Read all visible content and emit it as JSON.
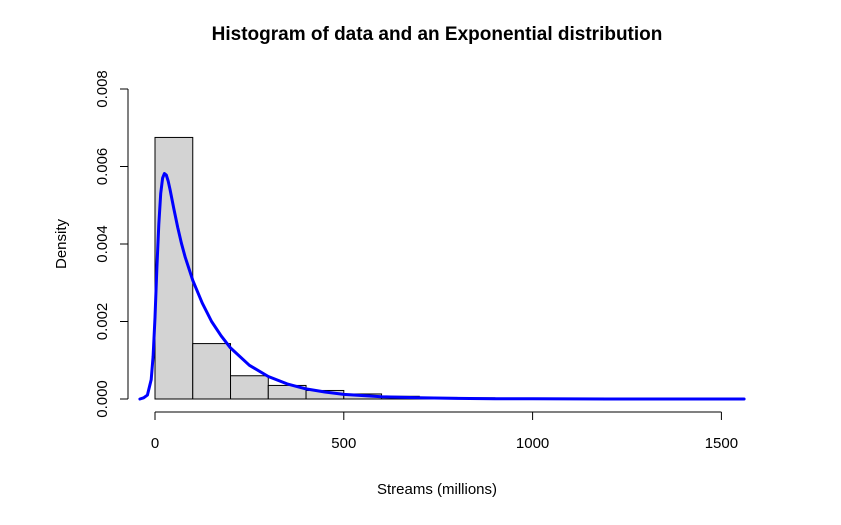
{
  "chart_data": {
    "type": "bar",
    "title": "Histogram of data and an Exponential distribution",
    "xlabel": "Streams (millions)",
    "ylabel": "Density",
    "xlim": [
      0,
      1550
    ],
    "ylim": [
      0,
      0.008
    ],
    "x_ticks": [
      {
        "value": 0,
        "label": "0"
      },
      {
        "value": 500,
        "label": "500"
      },
      {
        "value": 1000,
        "label": "1000"
      },
      {
        "value": 1500,
        "label": "1500"
      }
    ],
    "y_ticks": [
      {
        "value": 0,
        "label": "0.000"
      },
      {
        "value": 0.002,
        "label": "0.002"
      },
      {
        "value": 0.004,
        "label": "0.004"
      },
      {
        "value": 0.006,
        "label": "0.006"
      },
      {
        "value": 0.008,
        "label": "0.008"
      }
    ],
    "bins": [
      {
        "from": 0,
        "to": 100,
        "density": 0.00675
      },
      {
        "from": 100,
        "to": 200,
        "density": 0.00143
      },
      {
        "from": 200,
        "to": 300,
        "density": 0.0006
      },
      {
        "from": 300,
        "to": 400,
        "density": 0.00035
      },
      {
        "from": 400,
        "to": 500,
        "density": 0.00022
      },
      {
        "from": 500,
        "to": 600,
        "density": 0.00013
      },
      {
        "from": 600,
        "to": 700,
        "density": 7e-05
      },
      {
        "from": 700,
        "to": 800,
        "density": 4e-05
      },
      {
        "from": 800,
        "to": 900,
        "density": 3e-05
      },
      {
        "from": 900,
        "to": 1000,
        "density": 2e-05
      },
      {
        "from": 1000,
        "to": 1100,
        "density": 1e-05
      }
    ],
    "curve": {
      "x": [
        -40,
        -30,
        -20,
        -10,
        -5,
        0,
        5,
        10,
        15,
        20,
        25,
        30,
        35,
        40,
        50,
        60,
        70,
        80,
        100,
        125,
        150,
        175,
        200,
        250,
        300,
        350,
        400,
        450,
        500,
        600,
        700,
        800,
        900,
        1000,
        1200,
        1400,
        1560
      ],
      "y": [
        0.0,
        3e-05,
        0.0001,
        0.0005,
        0.0011,
        0.0021,
        0.0034,
        0.0045,
        0.0053,
        0.0057,
        0.00582,
        0.00578,
        0.00562,
        0.0054,
        0.0049,
        0.00443,
        0.00402,
        0.00366,
        0.00306,
        0.00248,
        0.002,
        0.00163,
        0.00132,
        0.00087,
        0.00058,
        0.00039,
        0.00026,
        0.00018,
        0.00012,
        6e-05,
        3e-05,
        1.5e-05,
        8e-06,
        4e-06,
        1e-06,
        0.0,
        0.0
      ],
      "color": "#0000ff"
    },
    "bar_fill": "#d3d3d3",
    "bar_stroke": "#000000",
    "grid": false
  }
}
